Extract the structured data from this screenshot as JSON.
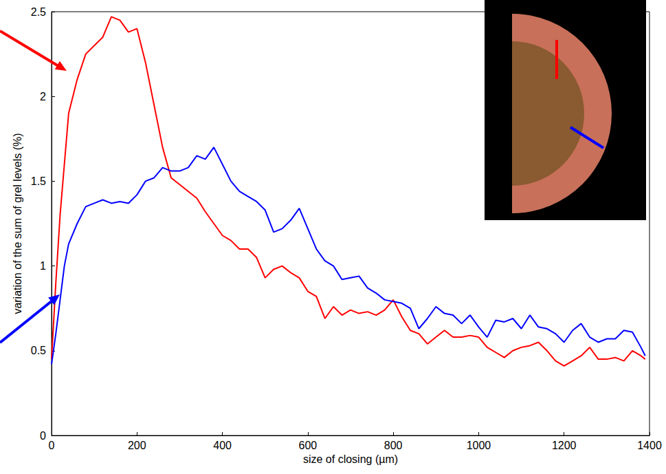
{
  "chart_data": {
    "type": "line",
    "x_label": "size of closing (µm)",
    "y_label": "variation of the sum of grel levels (%)",
    "x": [
      0,
      10,
      20,
      30,
      40,
      60,
      80,
      100,
      120,
      140,
      160,
      180,
      200,
      220,
      240,
      260,
      280,
      300,
      320,
      340,
      360,
      380,
      400,
      420,
      440,
      460,
      480,
      500,
      520,
      540,
      560,
      580,
      600,
      620,
      640,
      660,
      680,
      700,
      720,
      740,
      760,
      780,
      800,
      820,
      840,
      860,
      880,
      900,
      920,
      940,
      960,
      980,
      1000,
      1020,
      1040,
      1060,
      1080,
      1100,
      1120,
      1140,
      1160,
      1180,
      1200,
      1220,
      1240,
      1260,
      1280,
      1300,
      1320,
      1340,
      1360,
      1380,
      1390
    ],
    "series": [
      {
        "color": "#ff0000",
        "values": [
          0.45,
          0.9,
          1.3,
          1.6,
          1.9,
          2.1,
          2.25,
          2.3,
          2.35,
          2.47,
          2.45,
          2.38,
          2.4,
          2.2,
          1.95,
          1.7,
          1.52,
          1.48,
          1.44,
          1.4,
          1.32,
          1.25,
          1.18,
          1.15,
          1.1,
          1.1,
          1.05,
          0.93,
          0.98,
          1.0,
          0.96,
          0.93,
          0.85,
          0.82,
          0.69,
          0.76,
          0.71,
          0.74,
          0.72,
          0.73,
          0.71,
          0.74,
          0.8,
          0.7,
          0.62,
          0.6,
          0.54,
          0.58,
          0.62,
          0.58,
          0.58,
          0.59,
          0.58,
          0.52,
          0.49,
          0.46,
          0.5,
          0.52,
          0.53,
          0.55,
          0.5,
          0.44,
          0.41,
          0.44,
          0.47,
          0.52,
          0.45,
          0.45,
          0.46,
          0.44,
          0.5,
          0.47,
          0.45
        ]
      },
      {
        "color": "#0000ff",
        "values": [
          0.42,
          0.6,
          0.8,
          1.0,
          1.13,
          1.25,
          1.35,
          1.37,
          1.39,
          1.37,
          1.38,
          1.37,
          1.42,
          1.5,
          1.52,
          1.58,
          1.56,
          1.56,
          1.58,
          1.65,
          1.63,
          1.7,
          1.6,
          1.5,
          1.44,
          1.41,
          1.38,
          1.33,
          1.2,
          1.22,
          1.27,
          1.34,
          1.22,
          1.1,
          1.03,
          1.0,
          0.92,
          0.93,
          0.94,
          0.87,
          0.84,
          0.8,
          0.79,
          0.78,
          0.75,
          0.63,
          0.69,
          0.76,
          0.72,
          0.71,
          0.66,
          0.71,
          0.64,
          0.58,
          0.68,
          0.67,
          0.69,
          0.63,
          0.71,
          0.64,
          0.63,
          0.6,
          0.55,
          0.62,
          0.66,
          0.58,
          0.55,
          0.57,
          0.57,
          0.62,
          0.61,
          0.52,
          0.47
        ]
      }
    ],
    "xlim": [
      0,
      1400
    ],
    "xticks": [
      0,
      200,
      400,
      600,
      800,
      1000,
      1200,
      1400
    ],
    "ylim": [
      0,
      2.5
    ],
    "yticks": [
      0,
      0.5,
      1,
      1.5,
      2,
      2.5
    ],
    "grid": false
  }
}
